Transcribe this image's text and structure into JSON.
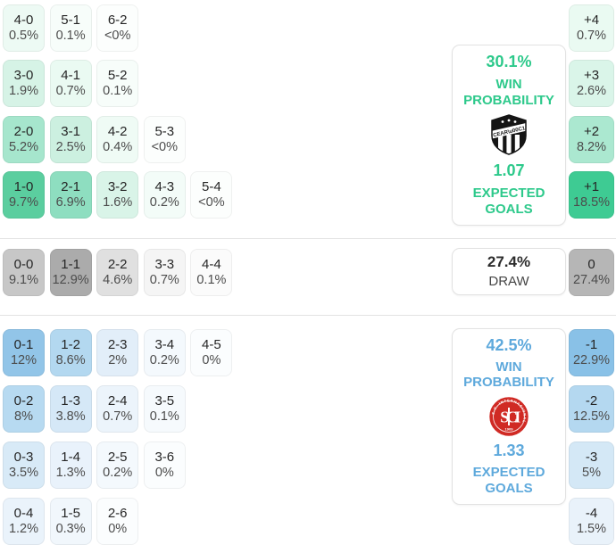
{
  "colors": {
    "home_accent": "#2dc98b",
    "away_accent": "#5ea9dc",
    "draw_text": "#2d2d2d",
    "ceara_black": "#151515",
    "inter_red": "#d02a24"
  },
  "home": {
    "panel": {
      "win_value": "30.1%",
      "win_label": "WIN PROBABILITY",
      "xg_value": "1.07",
      "xg_label": "EXPECTED GOALS",
      "crest_icon": "ceara-crest"
    },
    "cells": [
      {
        "score": "4-0",
        "pct": "0.5%",
        "row": 0,
        "col": 0,
        "bg": "#edfaf4"
      },
      {
        "score": "5-1",
        "pct": "0.1%",
        "row": 0,
        "col": 1,
        "bg": "#f7fdfa"
      },
      {
        "score": "6-2",
        "pct": "<0%",
        "row": 0,
        "col": 2,
        "bg": "#fcfefd"
      },
      {
        "score": "3-0",
        "pct": "1.9%",
        "row": 1,
        "col": 0,
        "bg": "#d6f3e6"
      },
      {
        "score": "4-1",
        "pct": "0.7%",
        "row": 1,
        "col": 1,
        "bg": "#eafaf2"
      },
      {
        "score": "5-2",
        "pct": "0.1%",
        "row": 1,
        "col": 2,
        "bg": "#f7fdfa"
      },
      {
        "score": "2-0",
        "pct": "5.2%",
        "row": 2,
        "col": 0,
        "bg": "#a6e6cd"
      },
      {
        "score": "3-1",
        "pct": "2.5%",
        "row": 2,
        "col": 1,
        "bg": "#ccf0e0"
      },
      {
        "score": "4-2",
        "pct": "0.4%",
        "row": 2,
        "col": 2,
        "bg": "#effbf5"
      },
      {
        "score": "5-3",
        "pct": "<0%",
        "row": 2,
        "col": 3,
        "bg": "#fcfefd"
      },
      {
        "score": "1-0",
        "pct": "9.7%",
        "row": 3,
        "col": 0,
        "bg": "#5bce9f"
      },
      {
        "score": "2-1",
        "pct": "6.9%",
        "row": 3,
        "col": 1,
        "bg": "#8edec0"
      },
      {
        "score": "3-2",
        "pct": "1.6%",
        "row": 3,
        "col": 2,
        "bg": "#d9f4e8"
      },
      {
        "score": "4-3",
        "pct": "0.2%",
        "row": 3,
        "col": 3,
        "bg": "#f3fcf8"
      },
      {
        "score": "5-4",
        "pct": "<0%",
        "row": 3,
        "col": 4,
        "bg": "#fcfefd"
      }
    ],
    "margins": [
      {
        "label": "+4",
        "pct": "0.7%",
        "bg": "#eafaf2"
      },
      {
        "label": "+3",
        "pct": "2.6%",
        "bg": "#daf5e9"
      },
      {
        "label": "+2",
        "pct": "8.2%",
        "bg": "#abe8d0"
      },
      {
        "label": "+1",
        "pct": "18.5%",
        "bg": "#3ecb93"
      }
    ]
  },
  "draw": {
    "panel": {
      "value": "27.4%",
      "label": "DRAW"
    },
    "cells": [
      {
        "score": "0-0",
        "pct": "9.1%",
        "row": 0,
        "col": 0,
        "bg": "#c7c7c7"
      },
      {
        "score": "1-1",
        "pct": "12.9%",
        "row": 0,
        "col": 1,
        "bg": "#ababab"
      },
      {
        "score": "2-2",
        "pct": "4.6%",
        "row": 0,
        "col": 2,
        "bg": "#e0e0e0"
      },
      {
        "score": "3-3",
        "pct": "0.7%",
        "row": 0,
        "col": 3,
        "bg": "#f5f5f5"
      },
      {
        "score": "4-4",
        "pct": "0.1%",
        "row": 0,
        "col": 4,
        "bg": "#fbfbfb"
      }
    ],
    "margin": {
      "label": "0",
      "pct": "27.4%",
      "bg": "#b6b6b6"
    }
  },
  "away": {
    "panel": {
      "win_value": "42.5%",
      "win_label": "WIN PROBABILITY",
      "xg_value": "1.33",
      "xg_label": "EXPECTED GOALS",
      "crest_icon": "internacional-crest"
    },
    "cells": [
      {
        "score": "0-1",
        "pct": "12%",
        "row": 0,
        "col": 0,
        "bg": "#92c5e8"
      },
      {
        "score": "1-2",
        "pct": "8.6%",
        "row": 0,
        "col": 1,
        "bg": "#b3d8f0"
      },
      {
        "score": "2-3",
        "pct": "2%",
        "row": 0,
        "col": 2,
        "bg": "#e2eef9"
      },
      {
        "score": "3-4",
        "pct": "0.2%",
        "row": 0,
        "col": 3,
        "bg": "#f4f9fd"
      },
      {
        "score": "4-5",
        "pct": "0%",
        "row": 0,
        "col": 4,
        "bg": "#fbfdfe"
      },
      {
        "score": "0-2",
        "pct": "8%",
        "row": 1,
        "col": 0,
        "bg": "#b7daf1"
      },
      {
        "score": "1-3",
        "pct": "3.8%",
        "row": 1,
        "col": 1,
        "bg": "#d5e8f7"
      },
      {
        "score": "2-4",
        "pct": "0.7%",
        "row": 1,
        "col": 2,
        "bg": "#ecf4fb"
      },
      {
        "score": "3-5",
        "pct": "0.1%",
        "row": 1,
        "col": 3,
        "bg": "#f6fafd"
      },
      {
        "score": "0-3",
        "pct": "3.5%",
        "row": 2,
        "col": 0,
        "bg": "#d8eaf7"
      },
      {
        "score": "1-4",
        "pct": "1.3%",
        "row": 2,
        "col": 1,
        "bg": "#e9f2fb"
      },
      {
        "score": "2-5",
        "pct": "0.2%",
        "row": 2,
        "col": 2,
        "bg": "#f4f9fd"
      },
      {
        "score": "3-6",
        "pct": "0%",
        "row": 2,
        "col": 3,
        "bg": "#fbfdfe"
      },
      {
        "score": "0-4",
        "pct": "1.2%",
        "row": 3,
        "col": 0,
        "bg": "#eaf3fb"
      },
      {
        "score": "1-5",
        "pct": "0.3%",
        "row": 3,
        "col": 1,
        "bg": "#f1f7fc"
      },
      {
        "score": "2-6",
        "pct": "0%",
        "row": 3,
        "col": 2,
        "bg": "#fbfdfe"
      }
    ],
    "margins": [
      {
        "label": "-1",
        "pct": "22.9%",
        "bg": "#89c1e7"
      },
      {
        "label": "-2",
        "pct": "12.5%",
        "bg": "#b4d8f0"
      },
      {
        "label": "-3",
        "pct": "5%",
        "bg": "#d4e8f6"
      },
      {
        "label": "-4",
        "pct": "1.5%",
        "bg": "#e9f2fa"
      }
    ]
  },
  "chart_data": {
    "type": "heatmap",
    "description": "Correct-score probability matrix with win/draw probabilities, expected goals and goal-margin probabilities",
    "home_team": {
      "crest": "ceara",
      "win_probability_pct": 30.1,
      "expected_goals": 1.07,
      "score_probabilities_pct": {
        "4-0": 0.5,
        "5-1": 0.1,
        "6-2": "<0",
        "3-0": 1.9,
        "4-1": 0.7,
        "5-2": 0.1,
        "2-0": 5.2,
        "3-1": 2.5,
        "4-2": 0.4,
        "5-3": "<0",
        "1-0": 9.7,
        "2-1": 6.9,
        "3-2": 1.6,
        "4-3": 0.2,
        "5-4": "<0"
      },
      "margin_probabilities_pct": {
        "+4": 0.7,
        "+3": 2.6,
        "+2": 8.2,
        "+1": 18.5
      }
    },
    "draw": {
      "probability_pct": 27.4,
      "score_probabilities_pct": {
        "0-0": 9.1,
        "1-1": 12.9,
        "2-2": 4.6,
        "3-3": 0.7,
        "4-4": 0.1
      },
      "margin_probabilities_pct": {
        "0": 27.4
      }
    },
    "away_team": {
      "crest": "internacional",
      "win_probability_pct": 42.5,
      "expected_goals": 1.33,
      "score_probabilities_pct": {
        "0-1": 12,
        "1-2": 8.6,
        "2-3": 2,
        "3-4": 0.2,
        "4-5": 0,
        "0-2": 8,
        "1-3": 3.8,
        "2-4": 0.7,
        "3-5": 0.1,
        "0-3": 3.5,
        "1-4": 1.3,
        "2-5": 0.2,
        "3-6": 0,
        "0-4": 1.2,
        "1-5": 0.3,
        "2-6": 0
      },
      "margin_probabilities_pct": {
        "-1": 22.9,
        "-2": 12.5,
        "-3": 5,
        "-4": 1.5
      }
    }
  }
}
